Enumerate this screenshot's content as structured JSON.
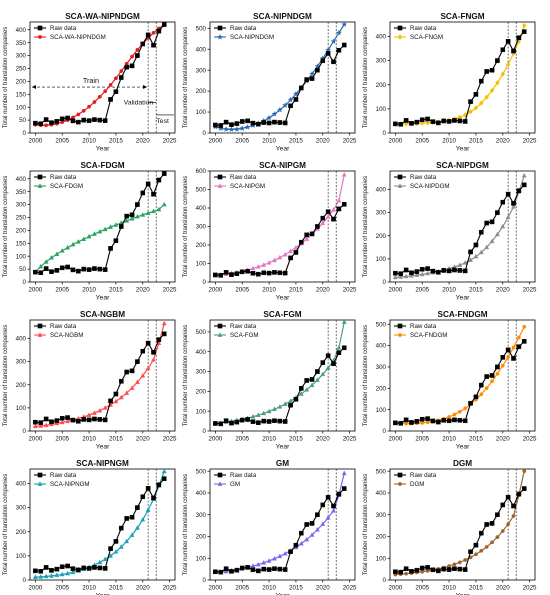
{
  "figure": {
    "x_ticks": [
      2000,
      2005,
      2010,
      2015,
      2020,
      2025
    ],
    "xlim": [
      1999,
      2026
    ],
    "years": [
      2000,
      2001,
      2002,
      2003,
      2004,
      2005,
      2006,
      2007,
      2008,
      2009,
      2010,
      2011,
      2012,
      2013,
      2014,
      2015,
      2016,
      2017,
      2018,
      2019,
      2020,
      2021,
      2022,
      2023,
      2024
    ],
    "vlines": [
      2021,
      2022.5
    ],
    "raw_color": "#000000"
  },
  "chart_data": [
    {
      "type": "line",
      "title": "SCA-WA-NIPNDGM",
      "xlabel": "Year",
      "ylabel": "Total number of translation companies",
      "ylim": [
        0,
        430
      ],
      "yticks": [
        0,
        50,
        100,
        150,
        200,
        250,
        300,
        350,
        400
      ],
      "legend_position": "top-left",
      "annotations": {
        "train": "Train",
        "validation": "Validation",
        "test": "Test"
      },
      "series": [
        {
          "name": "Raw data",
          "color": "#000000",
          "marker": "square",
          "values": [
            38,
            36,
            52,
            40,
            45,
            55,
            58,
            47,
            42,
            50,
            48,
            52,
            50,
            48,
            130,
            160,
            215,
            255,
            260,
            300,
            345,
            380,
            340,
            395,
            420
          ]
        },
        {
          "name": "SCA-WA-NIPNDGM",
          "color": "#e41a1c",
          "marker": "circle",
          "values": [
            32,
            30,
            30,
            32,
            36,
            42,
            50,
            60,
            72,
            86,
            102,
            120,
            140,
            162,
            186,
            212,
            240,
            268,
            296,
            322,
            346,
            368,
            388,
            405,
            420
          ]
        }
      ]
    },
    {
      "type": "line",
      "title": "SCA-NIPNDGM",
      "xlabel": "Year",
      "ylabel": "Total number of translation companies",
      "ylim": [
        0,
        530
      ],
      "yticks": [
        0,
        100,
        200,
        300,
        400,
        500
      ],
      "legend_position": "top-left",
      "series": [
        {
          "name": "Raw data",
          "color": "#000000",
          "marker": "square",
          "values": [
            38,
            36,
            52,
            40,
            45,
            55,
            58,
            47,
            42,
            50,
            48,
            52,
            50,
            48,
            130,
            160,
            215,
            255,
            260,
            300,
            345,
            380,
            340,
            395,
            420
          ]
        },
        {
          "name": "SCA-NIPNDGM",
          "color": "#2b6cb0",
          "marker": "star",
          "values": [
            30,
            22,
            18,
            17,
            18,
            22,
            28,
            36,
            46,
            58,
            72,
            90,
            110,
            132,
            158,
            186,
            216,
            248,
            282,
            318,
            356,
            396,
            437,
            478,
            518
          ]
        }
      ]
    },
    {
      "type": "line",
      "title": "SCA-FNGM",
      "xlabel": "Year",
      "ylabel": "Total number of translation companies",
      "ylim": [
        0,
        460
      ],
      "yticks": [
        0,
        100,
        200,
        300,
        400
      ],
      "legend_position": "top-left",
      "series": [
        {
          "name": "Raw data",
          "color": "#000000",
          "marker": "square",
          "values": [
            38,
            36,
            52,
            40,
            45,
            55,
            58,
            47,
            42,
            50,
            48,
            52,
            50,
            48,
            130,
            160,
            215,
            255,
            260,
            300,
            345,
            380,
            340,
            395,
            420
          ]
        },
        {
          "name": "SCA-FNGM",
          "color": "#f2c200",
          "marker": "diamond",
          "values": [
            36,
            37,
            38,
            39,
            40,
            41,
            42,
            44,
            46,
            49,
            53,
            58,
            65,
            75,
            88,
            104,
            124,
            148,
            176,
            208,
            244,
            284,
            330,
            380,
            445
          ]
        }
      ]
    },
    {
      "type": "line",
      "title": "SCA-FDGM",
      "xlabel": "Year",
      "ylabel": "Total number of translation companies",
      "ylim": [
        0,
        430
      ],
      "yticks": [
        0,
        50,
        100,
        150,
        200,
        250,
        300,
        350,
        400
      ],
      "legend_position": "top-left",
      "series": [
        {
          "name": "Raw data",
          "color": "#000000",
          "marker": "square",
          "values": [
            38,
            36,
            52,
            40,
            45,
            55,
            58,
            47,
            42,
            50,
            48,
            52,
            50,
            48,
            130,
            160,
            215,
            255,
            260,
            300,
            345,
            380,
            340,
            395,
            420
          ]
        },
        {
          "name": "SCA-FDGM",
          "color": "#2ca25f",
          "marker": "triangle",
          "values": [
            38,
            60,
            78,
            94,
            108,
            121,
            133,
            145,
            156,
            166,
            176,
            186,
            195,
            204,
            213,
            221,
            229,
            237,
            245,
            253,
            260,
            267,
            274,
            281,
            300
          ]
        }
      ]
    },
    {
      "type": "line",
      "title": "SCA-NIPGM",
      "xlabel": "Year",
      "ylabel": "Total number of translation companies",
      "ylim": [
        0,
        600
      ],
      "yticks": [
        0,
        100,
        200,
        300,
        400,
        500,
        600
      ],
      "legend_position": "top-left",
      "series": [
        {
          "name": "Raw data",
          "color": "#000000",
          "marker": "square",
          "values": [
            38,
            36,
            52,
            40,
            45,
            55,
            58,
            47,
            42,
            50,
            48,
            52,
            50,
            48,
            130,
            160,
            215,
            255,
            260,
            300,
            345,
            380,
            340,
            395,
            420
          ]
        },
        {
          "name": "SCA-NIPGM",
          "color": "#e377c2",
          "marker": "triangle",
          "values": [
            38,
            40,
            43,
            47,
            52,
            58,
            65,
            73,
            82,
            92,
            104,
            117,
            132,
            148,
            166,
            186,
            208,
            232,
            258,
            287,
            318,
            352,
            390,
            440,
            580
          ]
        }
      ]
    },
    {
      "type": "line",
      "title": "SCA-NIPDGM",
      "xlabel": "Year",
      "ylabel": "Total number of translation companies",
      "ylim": [
        0,
        480
      ],
      "yticks": [
        0,
        100,
        200,
        300,
        400
      ],
      "legend_position": "top-left",
      "series": [
        {
          "name": "Raw data",
          "color": "#000000",
          "marker": "square",
          "values": [
            38,
            36,
            52,
            40,
            45,
            55,
            58,
            47,
            42,
            50,
            48,
            52,
            50,
            48,
            130,
            160,
            215,
            255,
            260,
            300,
            345,
            380,
            340,
            395,
            420
          ]
        },
        {
          "name": "SCA-NIPDGM",
          "color": "#8c8c8c",
          "marker": "triangle",
          "values": [
            20,
            22,
            24,
            27,
            30,
            33,
            37,
            41,
            46,
            52,
            58,
            65,
            73,
            83,
            95,
            110,
            128,
            150,
            176,
            206,
            240,
            280,
            325,
            390,
            460
          ]
        }
      ]
    },
    {
      "type": "line",
      "title": "SCA-NGBM",
      "xlabel": "Year",
      "ylabel": "Total number of translation companies",
      "ylim": [
        0,
        480
      ],
      "yticks": [
        0,
        100,
        200,
        300,
        400
      ],
      "legend_position": "top-left",
      "series": [
        {
          "name": "Raw data",
          "color": "#000000",
          "marker": "square",
          "values": [
            38,
            36,
            52,
            40,
            45,
            55,
            58,
            47,
            42,
            50,
            48,
            52,
            50,
            48,
            130,
            160,
            215,
            255,
            260,
            300,
            345,
            380,
            340,
            395,
            420
          ]
        },
        {
          "name": "SCA-NGBM",
          "color": "#ff4d4d",
          "marker": "triangle",
          "values": [
            20,
            22,
            25,
            29,
            33,
            37,
            42,
            48,
            54,
            61,
            69,
            78,
            88,
            100,
            113,
            128,
            145,
            164,
            186,
            211,
            239,
            271,
            308,
            380,
            465
          ]
        }
      ]
    },
    {
      "type": "line",
      "title": "SCA-FGM",
      "xlabel": "Year",
      "ylabel": "Total number of translation companies",
      "ylim": [
        0,
        560
      ],
      "yticks": [
        0,
        100,
        200,
        300,
        400,
        500
      ],
      "legend_position": "top-left",
      "series": [
        {
          "name": "Raw data",
          "color": "#000000",
          "marker": "square",
          "values": [
            38,
            36,
            52,
            40,
            45,
            55,
            58,
            47,
            42,
            50,
            48,
            52,
            50,
            48,
            130,
            160,
            215,
            255,
            260,
            300,
            345,
            380,
            340,
            395,
            420
          ]
        },
        {
          "name": "SCA-FGM",
          "color": "#4a9c8a",
          "marker": "triangle",
          "values": [
            38,
            41,
            45,
            49,
            54,
            59,
            65,
            72,
            80,
            89,
            99,
            110,
            122,
            136,
            151,
            168,
            187,
            208,
            231,
            257,
            286,
            318,
            355,
            420,
            550
          ]
        }
      ]
    },
    {
      "type": "line",
      "title": "SCA-FNDGM",
      "xlabel": "Year",
      "ylabel": "Total number of translation companies",
      "ylim": [
        0,
        520
      ],
      "yticks": [
        0,
        100,
        200,
        300,
        400,
        500
      ],
      "legend_position": "top-left",
      "series": [
        {
          "name": "Raw data",
          "color": "#000000",
          "marker": "square",
          "values": [
            38,
            36,
            52,
            40,
            45,
            55,
            58,
            47,
            42,
            50,
            48,
            52,
            50,
            48,
            130,
            160,
            215,
            255,
            260,
            300,
            345,
            380,
            340,
            395,
            420
          ]
        },
        {
          "name": "SCA-FNDGM",
          "color": "#ff8c00",
          "marker": "circle",
          "values": [
            38,
            36,
            35,
            35,
            36,
            38,
            41,
            45,
            50,
            57,
            66,
            77,
            90,
            106,
            125,
            147,
            172,
            201,
            233,
            268,
            306,
            347,
            391,
            438,
            488
          ]
        }
      ]
    },
    {
      "type": "line",
      "title": "SCA-NIPNGM",
      "xlabel": "Year",
      "ylabel": "Total number of translation companies",
      "ylim": [
        0,
        460
      ],
      "yticks": [
        0,
        100,
        200,
        300,
        400
      ],
      "legend_position": "top-left",
      "series": [
        {
          "name": "Raw data",
          "color": "#000000",
          "marker": "square",
          "values": [
            38,
            36,
            52,
            40,
            45,
            55,
            58,
            47,
            42,
            50,
            48,
            52,
            50,
            48,
            130,
            160,
            215,
            255,
            260,
            300,
            345,
            380,
            340,
            395,
            420
          ]
        },
        {
          "name": "SCA-NIPNGM",
          "color": "#17a2b8",
          "marker": "triangle",
          "values": [
            12,
            13,
            15,
            17,
            20,
            23,
            27,
            32,
            38,
            45,
            53,
            62,
            73,
            86,
            100,
            117,
            137,
            160,
            186,
            216,
            250,
            290,
            335,
            390,
            450
          ]
        }
      ]
    },
    {
      "type": "line",
      "title": "GM",
      "xlabel": "Year",
      "ylabel": "Total number of translation companies",
      "ylim": [
        0,
        510
      ],
      "yticks": [
        0,
        100,
        200,
        300,
        400,
        500
      ],
      "legend_position": "top-left",
      "series": [
        {
          "name": "Raw data",
          "color": "#000000",
          "marker": "square",
          "values": [
            38,
            36,
            52,
            40,
            45,
            55,
            58,
            47,
            42,
            50,
            48,
            52,
            50,
            48,
            130,
            160,
            215,
            255,
            260,
            300,
            345,
            380,
            340,
            395,
            420
          ]
        },
        {
          "name": "GM",
          "color": "#7b68ee",
          "marker": "triangle",
          "values": [
            38,
            36,
            39,
            43,
            47,
            52,
            58,
            64,
            71,
            79,
            88,
            98,
            109,
            121,
            135,
            150,
            167,
            186,
            207,
            231,
            257,
            286,
            318,
            390,
            490
          ]
        }
      ]
    },
    {
      "type": "line",
      "title": "DGM",
      "xlabel": "Year",
      "ylabel": "Total number of translation companies",
      "ylim": [
        0,
        510
      ],
      "yticks": [
        0,
        100,
        200,
        300,
        400,
        500
      ],
      "legend_position": "top-left",
      "series": [
        {
          "name": "Raw data",
          "color": "#000000",
          "marker": "square",
          "values": [
            38,
            36,
            52,
            40,
            45,
            55,
            58,
            47,
            42,
            50,
            48,
            52,
            50,
            48,
            130,
            160,
            215,
            255,
            260,
            300,
            345,
            380,
            340,
            395,
            420
          ]
        },
        {
          "name": "DGM",
          "color": "#a0642d",
          "marker": "circle",
          "values": [
            25,
            27,
            29,
            32,
            35,
            38,
            42,
            46,
            51,
            57,
            64,
            72,
            81,
            92,
            104,
            118,
            134,
            152,
            173,
            197,
            225,
            257,
            294,
            390,
            500
          ]
        }
      ]
    }
  ]
}
